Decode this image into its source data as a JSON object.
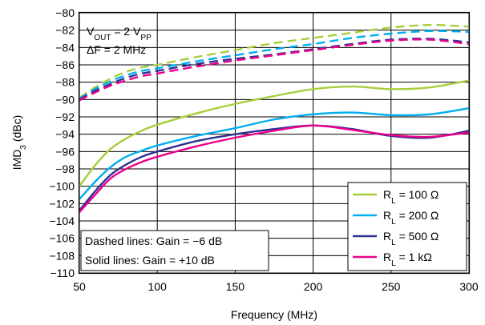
{
  "chart_data": {
    "type": "line",
    "xlabel": "Frequency (MHz)",
    "ylabel": {
      "main": "IMD",
      "sub": "3",
      "rest": " (dBc)"
    },
    "xlim": [
      50,
      300
    ],
    "ylim": [
      -110,
      -80
    ],
    "xticks": [
      50,
      100,
      150,
      200,
      250,
      300
    ],
    "yticks": [
      -110,
      -108,
      -106,
      -104,
      -102,
      -100,
      -98,
      -96,
      -94,
      -92,
      -90,
      -88,
      -86,
      -84,
      -82,
      -80
    ],
    "grid": true,
    "annotations": {
      "vout": {
        "prefix": "V",
        "sub": "OUT",
        "mid": " = 2 V",
        "sub2": "PP"
      },
      "deltaf": "ΔF = 2 MHz",
      "dashed_note": "Dashed lines: Gain = −6 dB",
      "solid_note": "Solid lines: Gain = +10 dB"
    },
    "legend": {
      "position": "bottom-right",
      "entries": [
        {
          "prefix": "R",
          "sub": "L",
          "rest": " = 100 Ω",
          "color": "#a6ce39"
        },
        {
          "prefix": "R",
          "sub": "L",
          "rest": " = 200 Ω",
          "color": "#00aeef"
        },
        {
          "prefix": "R",
          "sub": "L",
          "rest": " = 500 Ω",
          "color": "#2e3192"
        },
        {
          "prefix": "R",
          "sub": "L",
          "rest": " = 1 kΩ",
          "color": "#ec008c"
        }
      ]
    },
    "x": [
      50,
      60,
      70,
      80,
      90,
      100,
      125,
      150,
      175,
      200,
      225,
      250,
      275,
      300
    ],
    "series": [
      {
        "legend": 0,
        "style": "solid",
        "color": "#a6ce39",
        "values": [
          -100.0,
          -97.6,
          -95.7,
          -94.5,
          -93.6,
          -92.9,
          -91.6,
          -90.5,
          -89.6,
          -88.8,
          -88.5,
          -88.8,
          -88.6,
          -87.8
        ]
      },
      {
        "legend": 1,
        "style": "solid",
        "color": "#00aeef",
        "values": [
          -101.5,
          -99.5,
          -97.8,
          -96.6,
          -95.9,
          -95.3,
          -94.2,
          -93.3,
          -92.3,
          -91.7,
          -91.5,
          -91.8,
          -91.7,
          -91.0
        ]
      },
      {
        "legend": 2,
        "style": "solid",
        "color": "#2e3192",
        "values": [
          -102.8,
          -100.6,
          -98.7,
          -97.5,
          -96.6,
          -96.0,
          -94.8,
          -94.0,
          -93.4,
          -93.0,
          -93.4,
          -94.2,
          -94.4,
          -93.6
        ]
      },
      {
        "legend": 3,
        "style": "solid",
        "color": "#ec008c",
        "values": [
          -103.0,
          -101.0,
          -99.1,
          -98.0,
          -97.2,
          -96.6,
          -95.4,
          -94.4,
          -93.6,
          -93.0,
          -93.5,
          -94.1,
          -94.3,
          -93.8
        ]
      },
      {
        "legend": 0,
        "style": "dashed",
        "color": "#a6ce39",
        "values": [
          -89.8,
          -88.6,
          -87.6,
          -86.8,
          -86.3,
          -86.0,
          -85.1,
          -84.3,
          -83.5,
          -82.9,
          -82.3,
          -81.7,
          -81.4,
          -81.6
        ]
      },
      {
        "legend": 1,
        "style": "dashed",
        "color": "#00aeef",
        "values": [
          -89.9,
          -88.8,
          -87.9,
          -87.2,
          -86.7,
          -86.4,
          -85.6,
          -84.9,
          -84.2,
          -83.6,
          -82.9,
          -82.4,
          -82.1,
          -82.2
        ]
      },
      {
        "legend": 2,
        "style": "dashed",
        "color": "#2e3192",
        "values": [
          -90.0,
          -89.0,
          -88.2,
          -87.5,
          -87.0,
          -86.7,
          -85.9,
          -85.3,
          -84.8,
          -84.2,
          -83.6,
          -83.1,
          -83.0,
          -83.4
        ]
      },
      {
        "legend": 3,
        "style": "dashed",
        "color": "#ec008c",
        "values": [
          -90.1,
          -89.2,
          -88.4,
          -87.8,
          -87.3,
          -87.0,
          -86.2,
          -85.5,
          -84.9,
          -84.3,
          -83.7,
          -83.2,
          -83.1,
          -83.6
        ]
      }
    ]
  }
}
